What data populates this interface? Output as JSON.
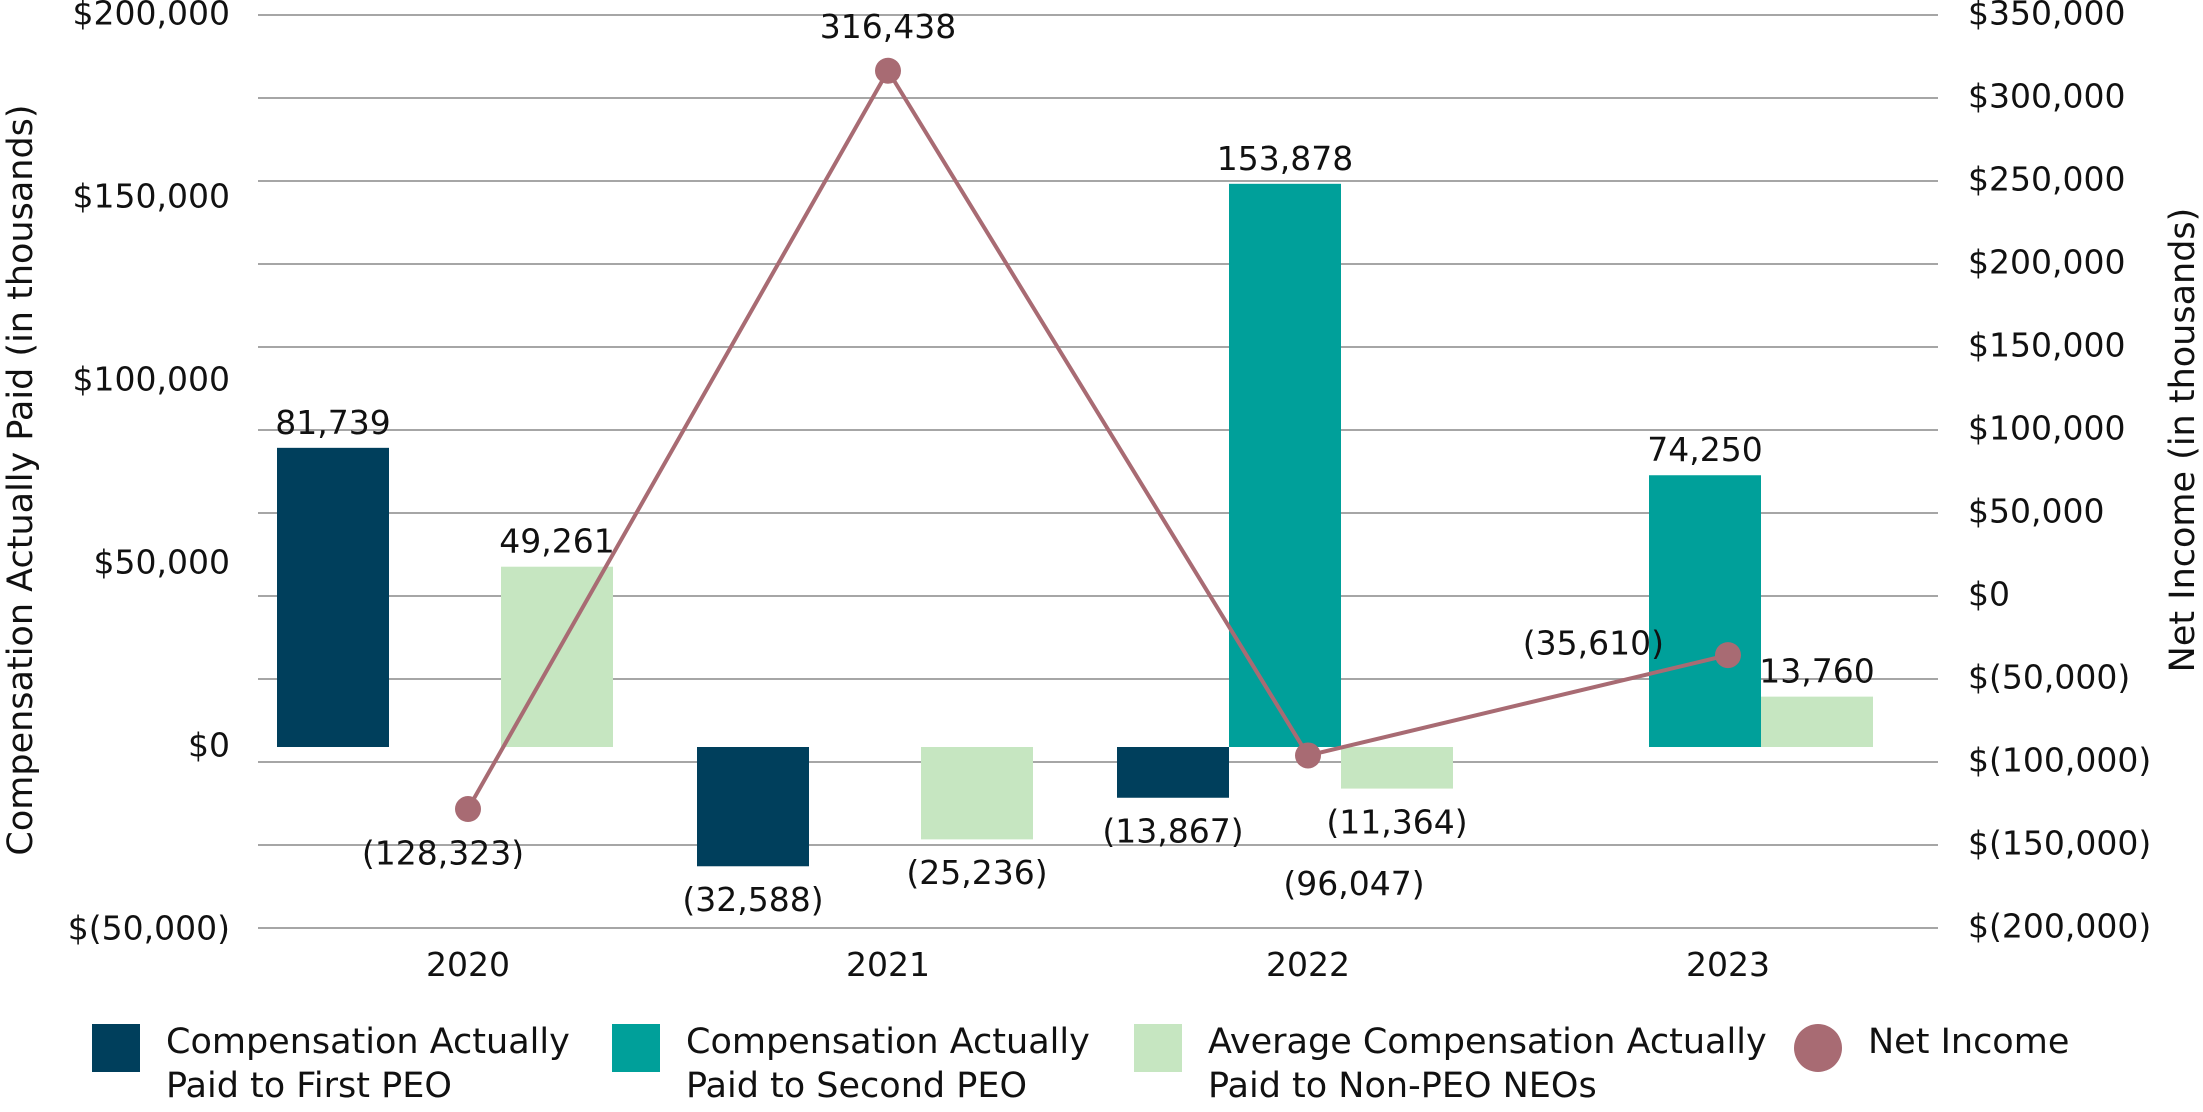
{
  "chart_data": {
    "type": "bar",
    "categories": [
      "2020",
      "2021",
      "2022",
      "2023"
    ],
    "y_left": {
      "label": "Compensation Actually Paid (in thousands)",
      "min": -50000,
      "max": 200000,
      "ticks": [
        -50000,
        0,
        50000,
        100000,
        150000,
        200000
      ],
      "tick_labels": [
        "$(50,000)",
        "$0",
        "$50,000",
        "$100,000",
        "$150,000",
        "$200,000"
      ]
    },
    "y_right": {
      "label": "Net Income (in thousands)",
      "min": -200000,
      "max": 350000,
      "ticks": [
        -200000,
        -150000,
        -100000,
        -50000,
        0,
        50000,
        100000,
        150000,
        200000,
        250000,
        300000,
        350000
      ],
      "tick_labels": [
        "$(200,000)",
        "$(150,000)",
        "$(100,000)",
        "$(50,000)",
        "$0",
        "$50,000",
        "$100,000",
        "$150,000",
        "$200,000",
        "$250,000",
        "$300,000",
        "$350,000"
      ]
    },
    "series": [
      {
        "name": "Compensation Actually Paid to First PEO",
        "kind": "bar",
        "axis": "left",
        "color": "#003f5c",
        "values": [
          81739,
          -32588,
          -13867,
          null
        ],
        "labels": [
          "81,739",
          "(32,588)",
          "(13,867)",
          null
        ]
      },
      {
        "name": "Compensation Actually Paid to Second PEO",
        "kind": "bar",
        "axis": "left",
        "color": "#00a09a",
        "values": [
          null,
          null,
          153878,
          74250
        ],
        "labels": [
          null,
          null,
          "153,878",
          "74,250"
        ]
      },
      {
        "name": "Average Compensation Actually Paid to Non-PEO NEOs",
        "kind": "bar",
        "axis": "left",
        "color": "#c6e6c1",
        "values": [
          49261,
          -25236,
          -11364,
          13760
        ],
        "labels": [
          "49,261",
          "(25,236)",
          "(11,364)",
          "13,760"
        ]
      },
      {
        "name": "Net Income",
        "kind": "line",
        "axis": "right",
        "color": "#a86b73",
        "values": [
          -128323,
          316438,
          -96047,
          -35610
        ],
        "labels": [
          "(128,323)",
          "316,438",
          "(96,047)",
          "(35,610)"
        ]
      }
    ]
  },
  "legend": [
    {
      "line1": "Compensation Actually",
      "line2": "Paid to First PEO",
      "color": "#003f5c",
      "marker": "square"
    },
    {
      "line1": "Compensation Actually",
      "line2": "Paid to Second PEO",
      "color": "#00a09a",
      "marker": "square"
    },
    {
      "line1": "Average Compensation Actually",
      "line2": "Paid to Non-PEO NEOs",
      "color": "#c6e6c1",
      "marker": "square"
    },
    {
      "line1": "Net Income",
      "line2": "",
      "color": "#a86b73",
      "marker": "circle"
    }
  ]
}
